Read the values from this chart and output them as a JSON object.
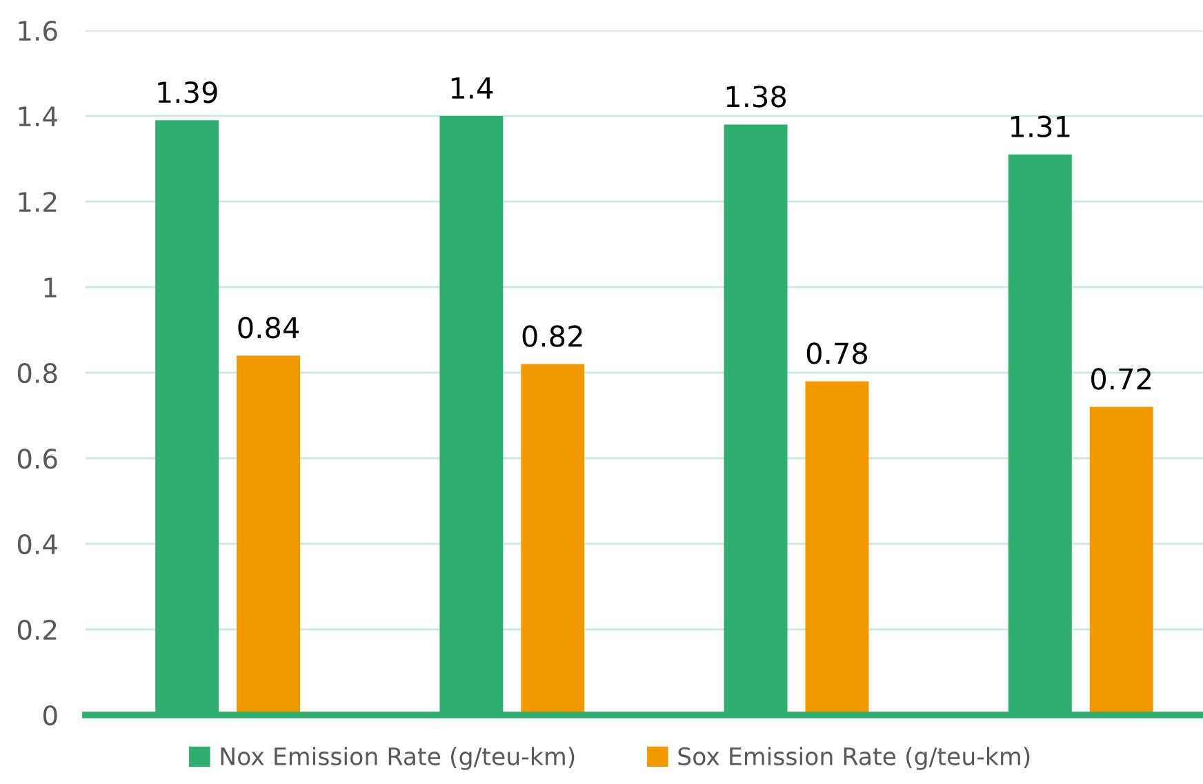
{
  "chart_data": {
    "type": "bar",
    "categories": [
      null,
      null,
      null,
      null
    ],
    "series": [
      {
        "name": "Nox Emission Rate (g/teu-km)",
        "color": "#2eae6e",
        "values": [
          1.39,
          1.4,
          1.38,
          1.31
        ]
      },
      {
        "name": "Sox Emission Rate (g/teu-km)",
        "color": "#f29900",
        "values": [
          0.84,
          0.82,
          0.78,
          0.72
        ]
      }
    ],
    "ylim": [
      0,
      1.6
    ],
    "yticks": [
      {
        "value": 0,
        "label": "0"
      },
      0.2,
      0.4,
      0.6,
      0.8,
      {
        "value": 1,
        "label": "1"
      },
      1.2,
      1.4,
      1.6
    ],
    "grid": "y",
    "data_labels": true,
    "legend": "bottom"
  }
}
